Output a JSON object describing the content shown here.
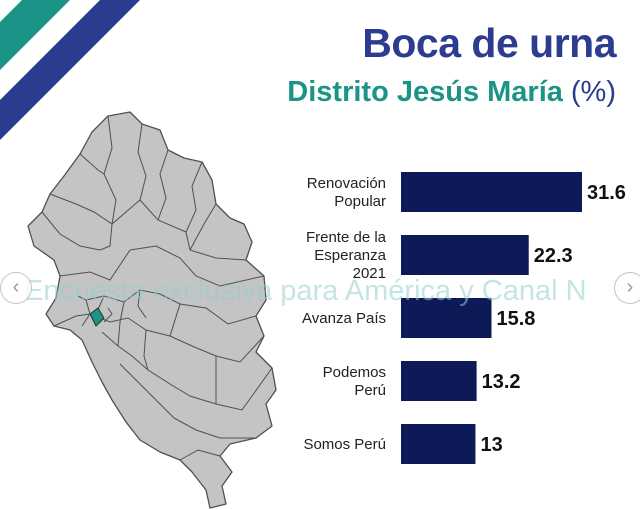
{
  "header": {
    "title": "Boca de urna",
    "subtitle": "Distrito Jesús María",
    "unit": "(%)"
  },
  "watermark": "Encuesta exclusiva para América y Canal N",
  "colors": {
    "bar": "#0e1a57",
    "title": "#2c3c8e",
    "subtitle": "#1a9486",
    "stripe_teal": "#1a9486",
    "stripe_blue": "#2c3c8e",
    "map_fill": "#c4c4c4",
    "map_highlight": "#1a9486"
  },
  "nav": {
    "left_icon": "chevron-left-icon",
    "right_icon": "chevron-right-icon"
  },
  "chart_data": {
    "type": "bar",
    "orientation": "horizontal",
    "categories": [
      [
        "Renovación",
        "Popular"
      ],
      [
        "Frente de la",
        "Esperanza",
        "2021"
      ],
      [
        "Avanza País"
      ],
      [
        "Podemos",
        "Perú"
      ],
      [
        "Somos Perú"
      ]
    ],
    "values": [
      31.6,
      22.3,
      15.8,
      13.2,
      13
    ],
    "value_labels": [
      "31.6",
      "22.3",
      "15.8",
      "13.2",
      "13"
    ],
    "xlim": [
      0,
      31.6
    ],
    "grid": false,
    "legend": "none"
  }
}
